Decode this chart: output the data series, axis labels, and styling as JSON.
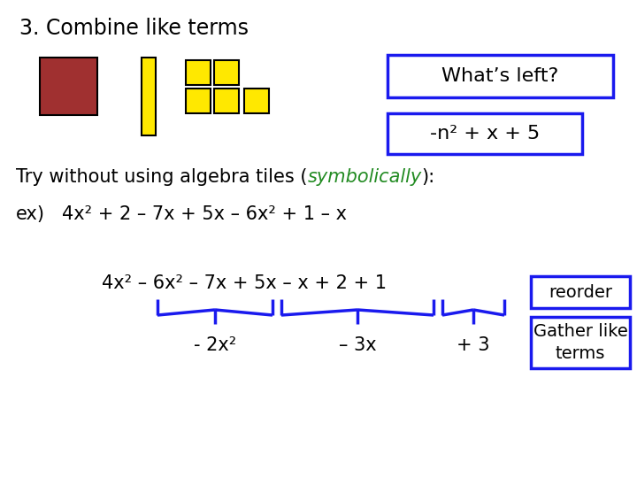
{
  "title": "3. Combine like terms",
  "whats_left_label": "What’s left?",
  "answer_label": "-n² + x + 5",
  "try_text_plain": "Try without using algebra tiles (",
  "try_text_colored": "symbolically",
  "try_text_end": "):",
  "ex_label": "ex)",
  "ex_expr": "4x² + 2 – 7x + 5x – 6x² + 1 – x",
  "reorder_expr": "4x² – 6x² – 7x + 5x – x + 2 + 1",
  "result1": "- 2x²",
  "result2": "– 3x",
  "result3": "+ 3",
  "reorder_label": "reorder",
  "gather_label": "Gather like\nterms",
  "bg_color": "#ffffff",
  "text_color": "#000000",
  "blue_color": "#1a1aee",
  "green_color": "#228B22",
  "red_tile_color": "#A03030",
  "yellow_color": "#FFE800",
  "title_fontsize": 17,
  "body_fontsize": 15,
  "math_fontsize": 15
}
